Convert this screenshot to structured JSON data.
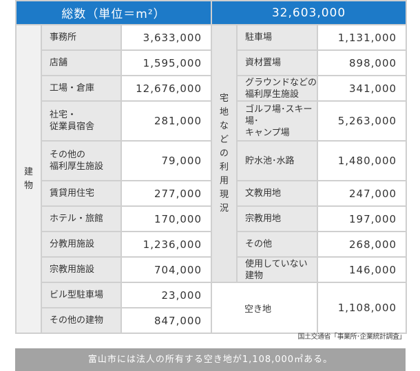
{
  "header": {
    "left_title": "総数（単位＝m²）",
    "right_total": "32,603,000"
  },
  "colors": {
    "header_bg": "#1d7ac8",
    "footer_bg": "#a3a3a3",
    "label_bg": "#e8e8e8",
    "border": "#cfcfcf"
  },
  "left": {
    "category": "建物",
    "rows": [
      {
        "label": "事務所",
        "value": "3,633,000"
      },
      {
        "label": "店舗",
        "value": "1,595,000"
      },
      {
        "label": "工場・倉庫",
        "value": "12,676,000"
      },
      {
        "label": "社宅・\n従業員宿舎",
        "value": "281,000"
      },
      {
        "label": "その他の\n福利厚生施設",
        "value": "79,000"
      },
      {
        "label": "賃貸用住宅",
        "value": "277,000"
      },
      {
        "label": "ホテル・旅館",
        "value": "170,000"
      },
      {
        "label": "分教用施設",
        "value": "1,236,000"
      },
      {
        "label": "宗教用施設",
        "value": "704,000"
      },
      {
        "label": "ビル型駐車場",
        "value": "23,000"
      },
      {
        "label": "その他の建物",
        "value": "847,000"
      }
    ]
  },
  "right": {
    "category": "宅地などの利用現況",
    "rows": [
      {
        "label": "駐車場",
        "value": "1,131,000"
      },
      {
        "label": "資材置場",
        "value": "898,000"
      },
      {
        "label": "グラウンドなどの\n福利厚生施設",
        "value": "341,000"
      },
      {
        "label": "ゴルフ場･スキー場･\nキャンプ場",
        "value": "5,263,000"
      },
      {
        "label": "貯水池･水路",
        "value": "1,480,000"
      },
      {
        "label": "文教用地",
        "value": "247,000"
      },
      {
        "label": "宗教用地",
        "value": "197,000"
      },
      {
        "label": "その他",
        "value": "268,000"
      },
      {
        "label": "使用していない\n建物",
        "value": "146,000"
      }
    ],
    "vacant": {
      "label": "空き地",
      "value": "1,108,000"
    }
  },
  "source": "国土交通省「事業所･企業統計調査」",
  "footer": "富山市には法人の所有する空き地が1,108,000㎡ある。"
}
